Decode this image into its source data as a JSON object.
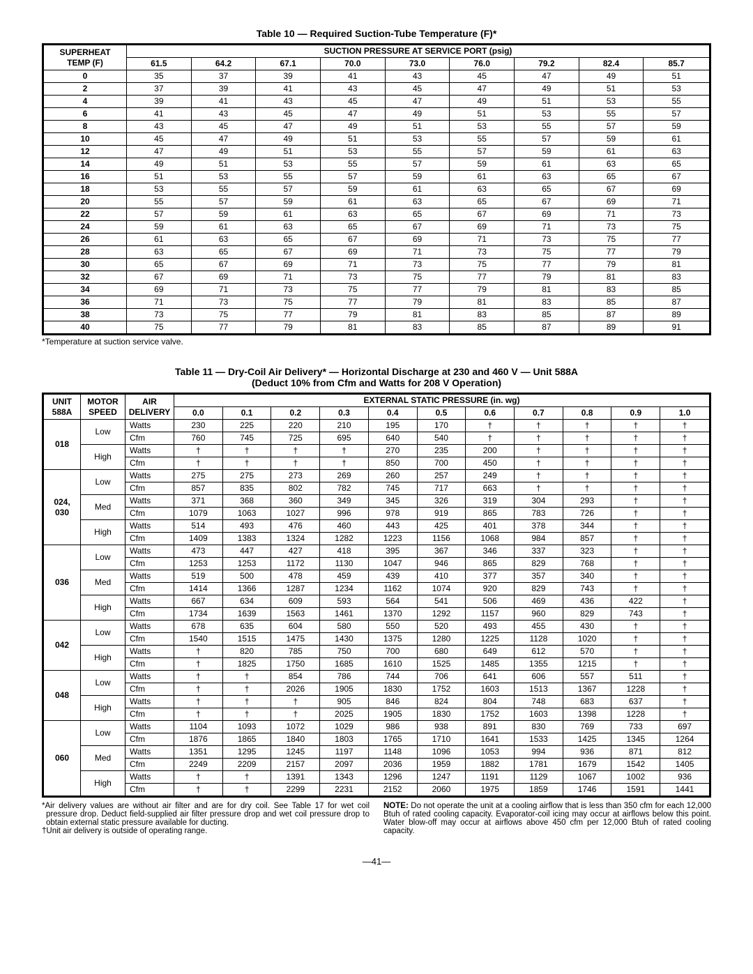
{
  "page_number": "—41—",
  "table10": {
    "title": "Table 10 — Required Suction-Tube Temperature (F)*",
    "footnote": "*Temperature at suction service valve.",
    "row_header_top": "SUPERHEAT",
    "row_header_bottom": "TEMP (F)",
    "col_group_label": "SUCTION PRESSURE AT SERVICE PORT (psig)",
    "pressures": [
      "61.5",
      "64.2",
      "67.1",
      "70.0",
      "73.0",
      "76.0",
      "79.2",
      "82.4",
      "85.7"
    ],
    "rows": [
      {
        "sh": "0",
        "v": [
          "35",
          "37",
          "39",
          "41",
          "43",
          "45",
          "47",
          "49",
          "51"
        ]
      },
      {
        "sh": "2",
        "v": [
          "37",
          "39",
          "41",
          "43",
          "45",
          "47",
          "49",
          "51",
          "53"
        ]
      },
      {
        "sh": "4",
        "v": [
          "39",
          "41",
          "43",
          "45",
          "47",
          "49",
          "51",
          "53",
          "55"
        ]
      },
      {
        "sh": "6",
        "v": [
          "41",
          "43",
          "45",
          "47",
          "49",
          "51",
          "53",
          "55",
          "57"
        ]
      },
      {
        "sh": "8",
        "v": [
          "43",
          "45",
          "47",
          "49",
          "51",
          "53",
          "55",
          "57",
          "59"
        ]
      },
      {
        "sh": "10",
        "v": [
          "45",
          "47",
          "49",
          "51",
          "53",
          "55",
          "57",
          "59",
          "61"
        ]
      },
      {
        "sh": "12",
        "v": [
          "47",
          "49",
          "51",
          "53",
          "55",
          "57",
          "59",
          "61",
          "63"
        ]
      },
      {
        "sh": "14",
        "v": [
          "49",
          "51",
          "53",
          "55",
          "57",
          "59",
          "61",
          "63",
          "65"
        ]
      },
      {
        "sh": "16",
        "v": [
          "51",
          "53",
          "55",
          "57",
          "59",
          "61",
          "63",
          "65",
          "67"
        ]
      },
      {
        "sh": "18",
        "v": [
          "53",
          "55",
          "57",
          "59",
          "61",
          "63",
          "65",
          "67",
          "69"
        ]
      },
      {
        "sh": "20",
        "v": [
          "55",
          "57",
          "59",
          "61",
          "63",
          "65",
          "67",
          "69",
          "71"
        ]
      },
      {
        "sh": "22",
        "v": [
          "57",
          "59",
          "61",
          "63",
          "65",
          "67",
          "69",
          "71",
          "73"
        ]
      },
      {
        "sh": "24",
        "v": [
          "59",
          "61",
          "63",
          "65",
          "67",
          "69",
          "71",
          "73",
          "75"
        ]
      },
      {
        "sh": "26",
        "v": [
          "61",
          "63",
          "65",
          "67",
          "69",
          "71",
          "73",
          "75",
          "77"
        ]
      },
      {
        "sh": "28",
        "v": [
          "63",
          "65",
          "67",
          "69",
          "71",
          "73",
          "75",
          "77",
          "79"
        ]
      },
      {
        "sh": "30",
        "v": [
          "65",
          "67",
          "69",
          "71",
          "73",
          "75",
          "77",
          "79",
          "81"
        ]
      },
      {
        "sh": "32",
        "v": [
          "67",
          "69",
          "71",
          "73",
          "75",
          "77",
          "79",
          "81",
          "83"
        ]
      },
      {
        "sh": "34",
        "v": [
          "69",
          "71",
          "73",
          "75",
          "77",
          "79",
          "81",
          "83",
          "85"
        ]
      },
      {
        "sh": "36",
        "v": [
          "71",
          "73",
          "75",
          "77",
          "79",
          "81",
          "83",
          "85",
          "87"
        ]
      },
      {
        "sh": "38",
        "v": [
          "73",
          "75",
          "77",
          "79",
          "81",
          "83",
          "85",
          "87",
          "89"
        ]
      },
      {
        "sh": "40",
        "v": [
          "75",
          "77",
          "79",
          "81",
          "83",
          "85",
          "87",
          "89",
          "91"
        ]
      }
    ]
  },
  "table11": {
    "title_line1": "Table 11 — Dry-Coil Air Delivery* — Horizontal Discharge at 230 and 460 V — Unit 588A",
    "title_line2": "(Deduct 10% from Cfm and Watts for 208 V Operation)",
    "col_unit_top": "UNIT",
    "col_unit_bottom": "588A",
    "col_motor_top": "MOTOR",
    "col_motor_bottom": "SPEED",
    "col_air_top": "AIR",
    "col_air_bottom": "DELIVERY",
    "col_group_label": "EXTERNAL STATIC PRESSURE (in. wg)",
    "esp": [
      "0.0",
      "0.1",
      "0.2",
      "0.3",
      "0.4",
      "0.5",
      "0.6",
      "0.7",
      "0.8",
      "0.9",
      "1.0"
    ],
    "units": [
      {
        "unit": "018",
        "speeds": [
          {
            "speed": "Low",
            "watts": [
              "230",
              "225",
              "220",
              "210",
              "195",
              "170",
              "†",
              "†",
              "†",
              "†",
              "†"
            ],
            "cfm": [
              "760",
              "745",
              "725",
              "695",
              "640",
              "540",
              "†",
              "†",
              "†",
              "†",
              "†"
            ]
          },
          {
            "speed": "High",
            "watts": [
              "†",
              "†",
              "†",
              "†",
              "270",
              "235",
              "200",
              "†",
              "†",
              "†",
              "†"
            ],
            "cfm": [
              "†",
              "†",
              "†",
              "†",
              "850",
              "700",
              "450",
              "†",
              "†",
              "†",
              "†"
            ]
          }
        ]
      },
      {
        "unit": "024, 030",
        "speeds": [
          {
            "speed": "Low",
            "watts": [
              "275",
              "275",
              "273",
              "269",
              "260",
              "257",
              "249",
              "†",
              "†",
              "†",
              "†"
            ],
            "cfm": [
              "857",
              "835",
              "802",
              "782",
              "745",
              "717",
              "663",
              "†",
              "†",
              "†",
              "†"
            ]
          },
          {
            "speed": "Med",
            "watts": [
              "371",
              "368",
              "360",
              "349",
              "345",
              "326",
              "319",
              "304",
              "293",
              "†",
              "†"
            ],
            "cfm": [
              "1079",
              "1063",
              "1027",
              "996",
              "978",
              "919",
              "865",
              "783",
              "726",
              "†",
              "†"
            ]
          },
          {
            "speed": "High",
            "watts": [
              "514",
              "493",
              "476",
              "460",
              "443",
              "425",
              "401",
              "378",
              "344",
              "†",
              "†"
            ],
            "cfm": [
              "1409",
              "1383",
              "1324",
              "1282",
              "1223",
              "1156",
              "1068",
              "984",
              "857",
              "†",
              "†"
            ]
          }
        ]
      },
      {
        "unit": "036",
        "speeds": [
          {
            "speed": "Low",
            "watts": [
              "473",
              "447",
              "427",
              "418",
              "395",
              "367",
              "346",
              "337",
              "323",
              "†",
              "†"
            ],
            "cfm": [
              "1253",
              "1253",
              "1172",
              "1130",
              "1047",
              "946",
              "865",
              "829",
              "768",
              "†",
              "†"
            ]
          },
          {
            "speed": "Med",
            "watts": [
              "519",
              "500",
              "478",
              "459",
              "439",
              "410",
              "377",
              "357",
              "340",
              "†",
              "†"
            ],
            "cfm": [
              "1414",
              "1366",
              "1287",
              "1234",
              "1162",
              "1074",
              "920",
              "829",
              "743",
              "†",
              "†"
            ]
          },
          {
            "speed": "High",
            "watts": [
              "667",
              "634",
              "609",
              "593",
              "564",
              "541",
              "506",
              "469",
              "436",
              "422",
              "†"
            ],
            "cfm": [
              "1734",
              "1639",
              "1563",
              "1461",
              "1370",
              "1292",
              "1157",
              "960",
              "829",
              "743",
              "†"
            ]
          }
        ]
      },
      {
        "unit": "042",
        "speeds": [
          {
            "speed": "Low",
            "watts": [
              "678",
              "635",
              "604",
              "580",
              "550",
              "520",
              "493",
              "455",
              "430",
              "†",
              "†"
            ],
            "cfm": [
              "1540",
              "1515",
              "1475",
              "1430",
              "1375",
              "1280",
              "1225",
              "1128",
              "1020",
              "†",
              "†"
            ]
          },
          {
            "speed": "High",
            "watts": [
              "†",
              "820",
              "785",
              "750",
              "700",
              "680",
              "649",
              "612",
              "570",
              "†",
              "†"
            ],
            "cfm": [
              "†",
              "1825",
              "1750",
              "1685",
              "1610",
              "1525",
              "1485",
              "1355",
              "1215",
              "†",
              "†"
            ]
          }
        ]
      },
      {
        "unit": "048",
        "speeds": [
          {
            "speed": "Low",
            "watts": [
              "†",
              "†",
              "854",
              "786",
              "744",
              "706",
              "641",
              "606",
              "557",
              "511",
              "†"
            ],
            "cfm": [
              "†",
              "†",
              "2026",
              "1905",
              "1830",
              "1752",
              "1603",
              "1513",
              "1367",
              "1228",
              "†"
            ]
          },
          {
            "speed": "High",
            "watts": [
              "†",
              "†",
              "†",
              "905",
              "846",
              "824",
              "804",
              "748",
              "683",
              "637",
              "†"
            ],
            "cfm": [
              "†",
              "†",
              "†",
              "2025",
              "1905",
              "1830",
              "1752",
              "1603",
              "1398",
              "1228",
              "†"
            ]
          }
        ]
      },
      {
        "unit": "060",
        "speeds": [
          {
            "speed": "Low",
            "watts": [
              "1104",
              "1093",
              "1072",
              "1029",
              "986",
              "938",
              "891",
              "830",
              "769",
              "733",
              "697"
            ],
            "cfm": [
              "1876",
              "1865",
              "1840",
              "1803",
              "1765",
              "1710",
              "1641",
              "1533",
              "1425",
              "1345",
              "1264"
            ]
          },
          {
            "speed": "Med",
            "watts": [
              "1351",
              "1295",
              "1245",
              "1197",
              "1148",
              "1096",
              "1053",
              "994",
              "936",
              "871",
              "812"
            ],
            "cfm": [
              "2249",
              "2209",
              "2157",
              "2097",
              "2036",
              "1959",
              "1882",
              "1781",
              "1679",
              "1542",
              "1405"
            ]
          },
          {
            "speed": "High",
            "watts": [
              "†",
              "†",
              "1391",
              "1343",
              "1296",
              "1247",
              "1191",
              "1129",
              "1067",
              "1002",
              "936"
            ],
            "cfm": [
              "†",
              "†",
              "2299",
              "2231",
              "2152",
              "2060",
              "1975",
              "1859",
              "1746",
              "1591",
              "1441"
            ]
          }
        ]
      }
    ],
    "note_left1": "*Air delivery values are without air filter and are for dry coil. See Table 17 for wet coil pressure drop. Deduct field-supplied air filter pressure drop and wet coil pressure drop to obtain external static pressure available for ducting.",
    "note_left2": "†Unit air delivery is outside of operating range.",
    "note_right_label": "NOTE:",
    "note_right": " Do not operate the unit at a cooling airflow that is less than 350 cfm for each 12,000 Btuh of rated cooling capacity. Evaporator-coil icing may occur at airflows below this point. Water blow-off may occur at airflows above 450 cfm per 12,000 Btuh of rated cooling capacity."
  }
}
